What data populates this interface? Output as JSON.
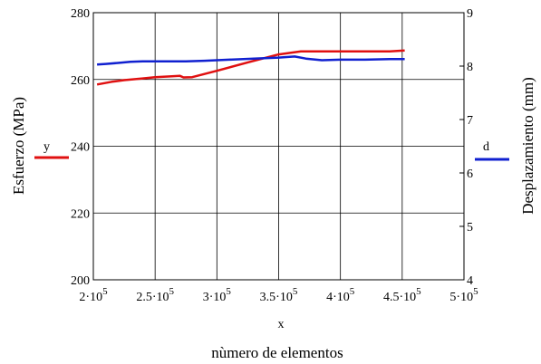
{
  "chart_data": {
    "type": "line",
    "xlabel": "x",
    "caption": "nùmero de elementos",
    "ylabel_left": "Esfuerzo (MPa)",
    "ylabel_right": "Desplazamiento (mm)",
    "xlim": [
      200000,
      500000
    ],
    "ylim_left": [
      200,
      280
    ],
    "ylim_right": [
      4,
      9
    ],
    "grid": true,
    "x_ticks": [
      {
        "value": 200000,
        "mantissa": "2",
        "exp": "5"
      },
      {
        "value": 250000,
        "mantissa": "2.5",
        "exp": "5"
      },
      {
        "value": 300000,
        "mantissa": "3",
        "exp": "5"
      },
      {
        "value": 350000,
        "mantissa": "3.5",
        "exp": "5"
      },
      {
        "value": 400000,
        "mantissa": "4",
        "exp": "5"
      },
      {
        "value": 450000,
        "mantissa": "4.5",
        "exp": "5"
      },
      {
        "value": 500000,
        "mantissa": "5",
        "exp": "5"
      }
    ],
    "y_ticks_left": [
      "200",
      "220",
      "240",
      "260",
      "280"
    ],
    "y_ticks_right": [
      "4",
      "5",
      "6",
      "7",
      "8",
      "9"
    ],
    "series": [
      {
        "name": "y",
        "axis": "left",
        "color": "#e01010",
        "x": [
          203000,
          215000,
          225000,
          240000,
          250000,
          262000,
          270000,
          273000,
          280000,
          300000,
          325000,
          350000,
          368000,
          380000,
          400000,
          420000,
          440000,
          452000
        ],
        "y": [
          258.5,
          259.3,
          259.8,
          260.3,
          260.7,
          260.9,
          261.1,
          260.6,
          260.7,
          262.6,
          265.1,
          267.5,
          268.4,
          268.4,
          268.4,
          268.4,
          268.4,
          268.7
        ]
      },
      {
        "name": "d",
        "axis": "right",
        "color": "#1020d0",
        "x": [
          203000,
          210000,
          220000,
          230000,
          240000,
          250000,
          260000,
          275000,
          290000,
          310000,
          330000,
          350000,
          363000,
          372000,
          385000,
          400000,
          420000,
          440000,
          452000
        ],
        "y": [
          8.03,
          8.04,
          8.06,
          8.08,
          8.09,
          8.09,
          8.09,
          8.09,
          8.1,
          8.12,
          8.14,
          8.16,
          8.18,
          8.14,
          8.11,
          8.12,
          8.12,
          8.13,
          8.13
        ]
      }
    ]
  }
}
